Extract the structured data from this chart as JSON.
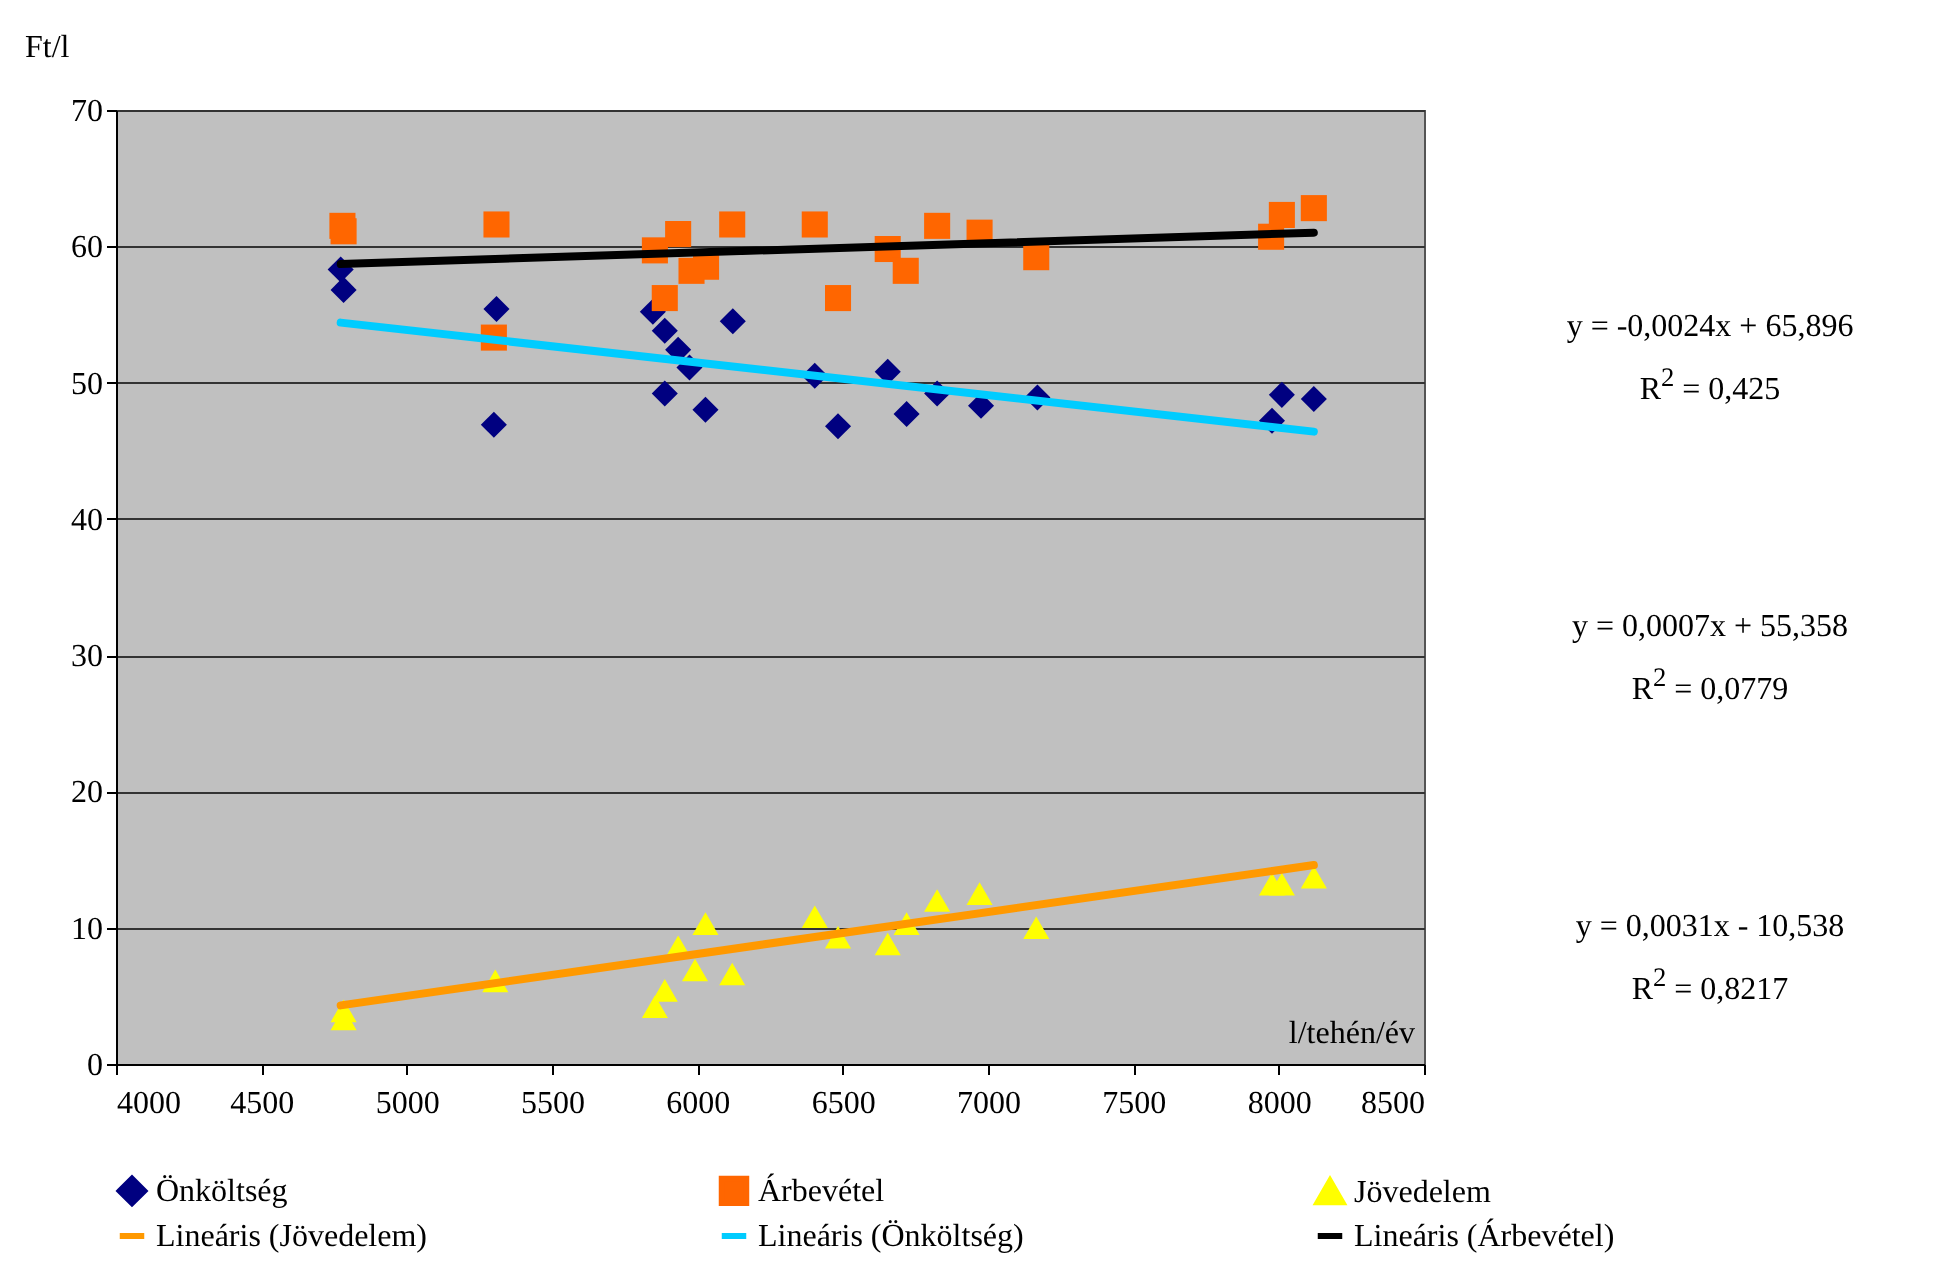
{
  "chart_data": {
    "type": "scatter",
    "xlabel": "l/tehén/év",
    "ylabel": "Ft/l",
    "xlim": [
      4000,
      8500
    ],
    "xticks": [
      4000,
      4500,
      5000,
      5500,
      6000,
      6500,
      7000,
      7500,
      8000,
      8500
    ],
    "ylim": [
      0,
      70
    ],
    "yticks": [
      0,
      10,
      20,
      30,
      40,
      50,
      60,
      70
    ],
    "grid": "y",
    "legend": "bottom",
    "series": [
      {
        "name": "Önköltség",
        "type": "scatter",
        "marker": "diamond",
        "color": "#000080",
        "x": [
          4773,
          4783,
          5309,
          5300,
          5847,
          5888,
          5934,
          5973,
          5888,
          6028,
          6122,
          6404,
          6484,
          6655,
          6720,
          6825,
          6976,
          7170,
          7977,
          8011,
          8121
        ],
        "values": [
          58.3,
          56.8,
          55.4,
          46.9,
          55.2,
          53.8,
          52.4,
          51.1,
          49.2,
          48.0,
          54.5,
          50.5,
          46.8,
          50.8,
          47.7,
          49.2,
          48.3,
          48.9,
          47.2,
          49.1,
          48.8
        ]
      },
      {
        "name": "Árbevétel",
        "type": "scatter",
        "marker": "square",
        "color": "#ff6600",
        "x": [
          4779,
          4783,
          5309,
          5300,
          5854,
          5934,
          5888,
          5980,
          6030,
          6120,
          6404,
          6484,
          6655,
          6717,
          6825,
          6971,
          7166,
          7974,
          8011,
          8121
        ],
        "values": [
          61.5,
          61.1,
          61.6,
          53.3,
          59.7,
          60.9,
          56.2,
          58.2,
          58.5,
          61.6,
          61.6,
          56.2,
          59.8,
          58.2,
          61.5,
          61.0,
          59.2,
          60.7,
          62.3,
          62.8
        ]
      },
      {
        "name": "Jövedelem",
        "type": "scatter",
        "marker": "triangle",
        "color": "#ffff00",
        "x": [
          4783,
          4783,
          5305,
          5854,
          5888,
          5934,
          5992,
          6028,
          6120,
          6404,
          6484,
          6655,
          6720,
          6825,
          6971,
          7166,
          7977,
          8011,
          8121
        ],
        "values": [
          3.9,
          3.3,
          6.1,
          4.2,
          5.4,
          8.6,
          6.9,
          10.3,
          6.6,
          10.8,
          9.3,
          8.8,
          10.3,
          12.0,
          12.5,
          10.0,
          13.2,
          13.2,
          13.7
        ]
      },
      {
        "name": "Lineáris (Jövedelem)",
        "type": "line",
        "color": "#ff9900",
        "x": [
          4773,
          8121
        ],
        "values": [
          4.3,
          14.6
        ]
      },
      {
        "name": "Lineáris (Önköltség)",
        "type": "line",
        "color": "#00ccff",
        "x": [
          4773,
          8121
        ],
        "values": [
          54.4,
          46.4
        ]
      },
      {
        "name": "Lineáris (Árbevétel)",
        "type": "line",
        "color": "#000000",
        "x": [
          4773,
          8121
        ],
        "values": [
          58.7,
          61.0
        ]
      }
    ],
    "annotations": [
      "y = -0,0024x + 65,896",
      "R$^{2}$ = 0,425",
      "y = 0,0007x + 55,358",
      "R$^{2}$ = 0,0779",
      "y = 0,0031x - 10,538",
      "R$^{2}$ = 0,8217"
    ]
  }
}
